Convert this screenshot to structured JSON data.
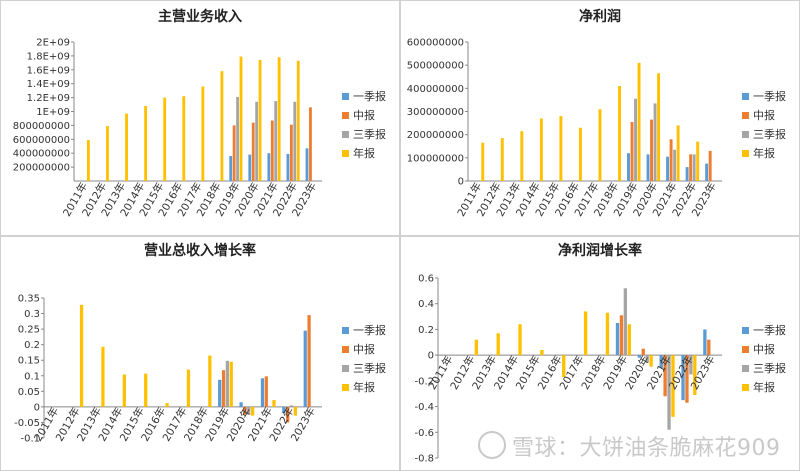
{
  "colors": {
    "q1": "#5B9BD5",
    "h1": "#ED7D31",
    "q3": "#A5A5A5",
    "fy": "#FFC000"
  },
  "legend": [
    "一季报",
    "中报",
    "三季报",
    "年报"
  ],
  "watermark": "雪球：大饼油条脆麻花909",
  "chart_data": [
    {
      "type": "bar",
      "title": "主营业务收入",
      "categories": [
        "2011年",
        "2012年",
        "2013年",
        "2014年",
        "2015年",
        "2016年",
        "2017年",
        "2018年",
        "2019年",
        "2020年",
        "2021年",
        "2022年",
        "2023年"
      ],
      "ylim": [
        0,
        2000000000
      ],
      "yticks": [
        200000000,
        400000000,
        600000000,
        800000000,
        1000000000,
        1200000000,
        1400000000,
        1600000000,
        1800000000,
        2000000000
      ],
      "ytick_labels": [
        "200000000",
        "400000000",
        "600000000",
        "800000000",
        "1E+09",
        "1.2E+09",
        "1.4E+09",
        "1.6E+09",
        "1.8E+09",
        "2E+09"
      ],
      "legend_position": "right",
      "grid": false,
      "series": [
        {
          "name": "一季报",
          "values": [
            null,
            null,
            null,
            null,
            null,
            null,
            null,
            null,
            360000000,
            380000000,
            400000000,
            390000000,
            470000000
          ]
        },
        {
          "name": "中报",
          "values": [
            null,
            null,
            null,
            null,
            null,
            null,
            null,
            null,
            800000000,
            840000000,
            870000000,
            810000000,
            1060000000
          ]
        },
        {
          "name": "三季报",
          "values": [
            null,
            null,
            null,
            null,
            null,
            null,
            null,
            null,
            1210000000,
            1140000000,
            1150000000,
            1140000000,
            null
          ]
        },
        {
          "name": "年报",
          "values": [
            590000000,
            790000000,
            970000000,
            1080000000,
            1200000000,
            1220000000,
            1360000000,
            1580000000,
            1790000000,
            1740000000,
            1780000000,
            1730000000,
            null
          ]
        }
      ]
    },
    {
      "type": "bar",
      "title": "净利润",
      "categories": [
        "2011年",
        "2012年",
        "2013年",
        "2014年",
        "2015年",
        "2016年",
        "2017年",
        "2018年",
        "2019年",
        "2020年",
        "2021年",
        "2022年",
        "2023年"
      ],
      "ylim": [
        0,
        600000000
      ],
      "yticks": [
        0,
        100000000,
        200000000,
        300000000,
        400000000,
        500000000,
        600000000
      ],
      "ytick_labels": [
        "0",
        "100000000",
        "200000000",
        "300000000",
        "400000000",
        "500000000",
        "600000000"
      ],
      "legend_position": "right",
      "grid": false,
      "series": [
        {
          "name": "一季报",
          "values": [
            null,
            null,
            null,
            null,
            null,
            null,
            null,
            null,
            120000000,
            115000000,
            105000000,
            60000000,
            75000000
          ]
        },
        {
          "name": "中报",
          "values": [
            null,
            null,
            null,
            null,
            null,
            null,
            null,
            null,
            255000000,
            265000000,
            180000000,
            115000000,
            130000000
          ]
        },
        {
          "name": "三季报",
          "values": [
            null,
            null,
            null,
            null,
            null,
            null,
            null,
            null,
            355000000,
            335000000,
            135000000,
            115000000,
            null
          ]
        },
        {
          "name": "年报",
          "values": [
            165000000,
            185000000,
            215000000,
            270000000,
            280000000,
            230000000,
            310000000,
            410000000,
            510000000,
            465000000,
            240000000,
            170000000,
            null
          ]
        }
      ]
    },
    {
      "type": "bar",
      "title": "营业总收入增长率",
      "categories": [
        "2011年",
        "2012年",
        "2013年",
        "2014年",
        "2015年",
        "2016年",
        "2017年",
        "2018年",
        "2019年",
        "2020年",
        "2021年",
        "2022年",
        "2023年"
      ],
      "ylim": [
        -0.1,
        0.35
      ],
      "yticks": [
        -0.1,
        -0.05,
        0,
        0.05,
        0.1,
        0.15,
        0.2,
        0.25,
        0.3,
        0.35
      ],
      "ytick_labels": [
        "-0.1",
        "-0.05",
        "0",
        "0.05",
        "0.1",
        "0.15",
        "0.2",
        "0.25",
        "0.3",
        "0.35"
      ],
      "legend_position": "right",
      "grid": false,
      "series": [
        {
          "name": "一季报",
          "values": [
            null,
            null,
            null,
            null,
            null,
            null,
            null,
            null,
            0.087,
            0.015,
            0.092,
            -0.02,
            0.245
          ]
        },
        {
          "name": "中报",
          "values": [
            null,
            null,
            null,
            null,
            null,
            null,
            null,
            null,
            0.118,
            -0.025,
            0.098,
            -0.05,
            0.295
          ]
        },
        {
          "name": "三季报",
          "values": [
            null,
            null,
            null,
            null,
            null,
            null,
            null,
            null,
            0.148,
            -0.025,
            0.002,
            0.005,
            null
          ]
        },
        {
          "name": "年报",
          "values": [
            null,
            0.328,
            0.193,
            0.104,
            0.107,
            0.012,
            0.12,
            0.165,
            0.145,
            -0.028,
            0.022,
            -0.028,
            null
          ]
        }
      ]
    },
    {
      "type": "bar",
      "title": "净利润增长率",
      "categories": [
        "2011年",
        "2012年",
        "2013年",
        "2014年",
        "2015年",
        "2016年",
        "2017年",
        "2018年",
        "2019年",
        "2020年",
        "2021年",
        "2022年",
        "2023年"
      ],
      "ylim": [
        -0.8,
        0.6
      ],
      "yticks": [
        -0.8,
        -0.6,
        -0.4,
        -0.2,
        0,
        0.2,
        0.4,
        0.6
      ],
      "ytick_labels": [
        "-0.8",
        "-0.6",
        "-0.4",
        "-0.2",
        "0",
        "0.2",
        "0.4",
        "0.6"
      ],
      "legend_position": "right",
      "grid": false,
      "series": [
        {
          "name": "一季报",
          "values": [
            null,
            null,
            null,
            null,
            null,
            null,
            null,
            null,
            0.25,
            -0.02,
            -0.1,
            -0.35,
            0.2
          ]
        },
        {
          "name": "中报",
          "values": [
            null,
            null,
            null,
            null,
            null,
            null,
            null,
            null,
            0.31,
            0.05,
            -0.32,
            -0.37,
            0.12
          ]
        },
        {
          "name": "三季报",
          "values": [
            null,
            null,
            null,
            null,
            null,
            null,
            null,
            null,
            0.52,
            -0.06,
            -0.58,
            -0.15,
            null
          ]
        },
        {
          "name": "年报",
          "values": [
            null,
            0.12,
            0.17,
            0.24,
            0.04,
            -0.17,
            0.34,
            0.33,
            0.24,
            -0.09,
            -0.48,
            -0.31,
            null
          ]
        }
      ]
    }
  ]
}
